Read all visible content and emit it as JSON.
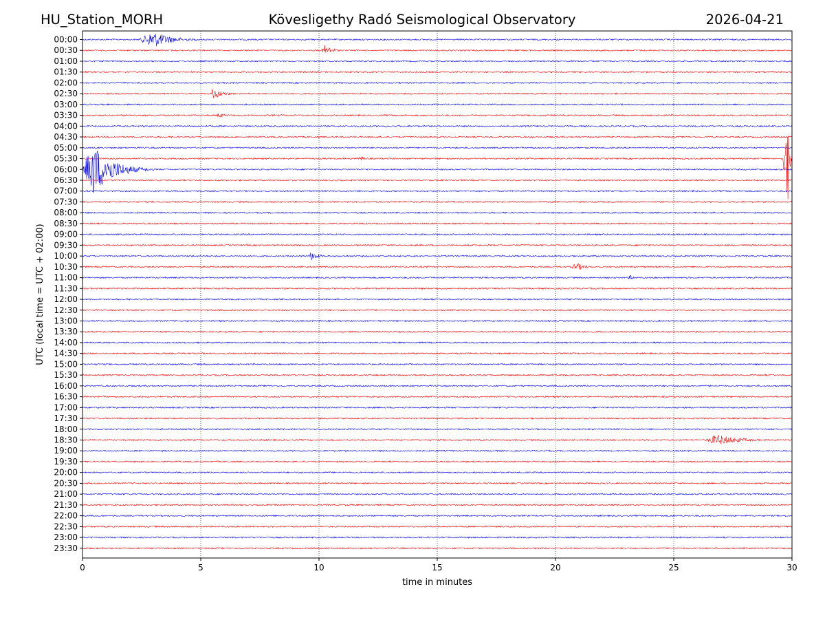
{
  "header": {
    "station": "HU_Station_MORH",
    "observatory": "Kövesligethy Radó Seismological Observatory",
    "date": "2026-04-21"
  },
  "chart_data": {
    "type": "line",
    "xlabel": "time in minutes",
    "ylabel": "UTC (local time = UTC + 02:00)",
    "xlim": [
      0,
      30
    ],
    "xticks": [
      "0",
      "5",
      "10",
      "15",
      "20",
      "25",
      "30"
    ],
    "grid": "vertical dotted lines at each 5-minute tick",
    "row_labels": [
      "00:00",
      "00:30",
      "01:00",
      "01:30",
      "02:00",
      "02:30",
      "03:00",
      "03:30",
      "04:00",
      "04:30",
      "05:00",
      "05:30",
      "06:00",
      "06:30",
      "07:00",
      "07:30",
      "08:00",
      "08:30",
      "09:00",
      "09:30",
      "10:00",
      "10:30",
      "11:00",
      "11:30",
      "12:00",
      "12:30",
      "13:00",
      "13:30",
      "14:00",
      "14:30",
      "15:00",
      "15:30",
      "16:00",
      "16:30",
      "17:00",
      "17:30",
      "18:00",
      "18:30",
      "19:00",
      "19:30",
      "20:00",
      "20:30",
      "21:00",
      "21:30",
      "22:00",
      "22:30",
      "23:00",
      "23:30"
    ],
    "trace_colors": [
      "#0000ff",
      "#ff0000"
    ],
    "events": [
      {
        "row": "00:00",
        "start_min": 2.3,
        "peak_min": 3.0,
        "end_min": 5.5,
        "amplitude": 12
      },
      {
        "row": "00:30",
        "start_min": 10.1,
        "peak_min": 10.25,
        "end_min": 11.2,
        "amplitude": 8
      },
      {
        "row": "02:30",
        "start_min": 5.4,
        "peak_min": 5.5,
        "end_min": 7.0,
        "amplitude": 8
      },
      {
        "row": "03:30",
        "start_min": 5.6,
        "peak_min": 5.8,
        "end_min": 6.5,
        "amplitude": 4
      },
      {
        "row": "05:30",
        "start_min": 11.4,
        "peak_min": 11.8,
        "end_min": 12.8,
        "amplitude": 3
      },
      {
        "row": "05:30",
        "start_min": 29.6,
        "peak_min": 29.85,
        "end_min": 30,
        "amplitude": 75
      },
      {
        "row": "06:00",
        "start_min": 0,
        "peak_min": 0.4,
        "end_min": 3.0,
        "amplitude": 40
      },
      {
        "row": "10:00",
        "start_min": 9.5,
        "peak_min": 9.7,
        "end_min": 10.6,
        "amplitude": 7
      },
      {
        "row": "10:30",
        "start_min": 20.6,
        "peak_min": 20.9,
        "end_min": 22.0,
        "amplitude": 6
      },
      {
        "row": "11:00",
        "start_min": 23.0,
        "peak_min": 23.2,
        "end_min": 23.6,
        "amplitude": 4
      },
      {
        "row": "18:30",
        "start_min": 26.3,
        "peak_min": 26.8,
        "end_min": 30,
        "amplitude": 8
      }
    ]
  }
}
